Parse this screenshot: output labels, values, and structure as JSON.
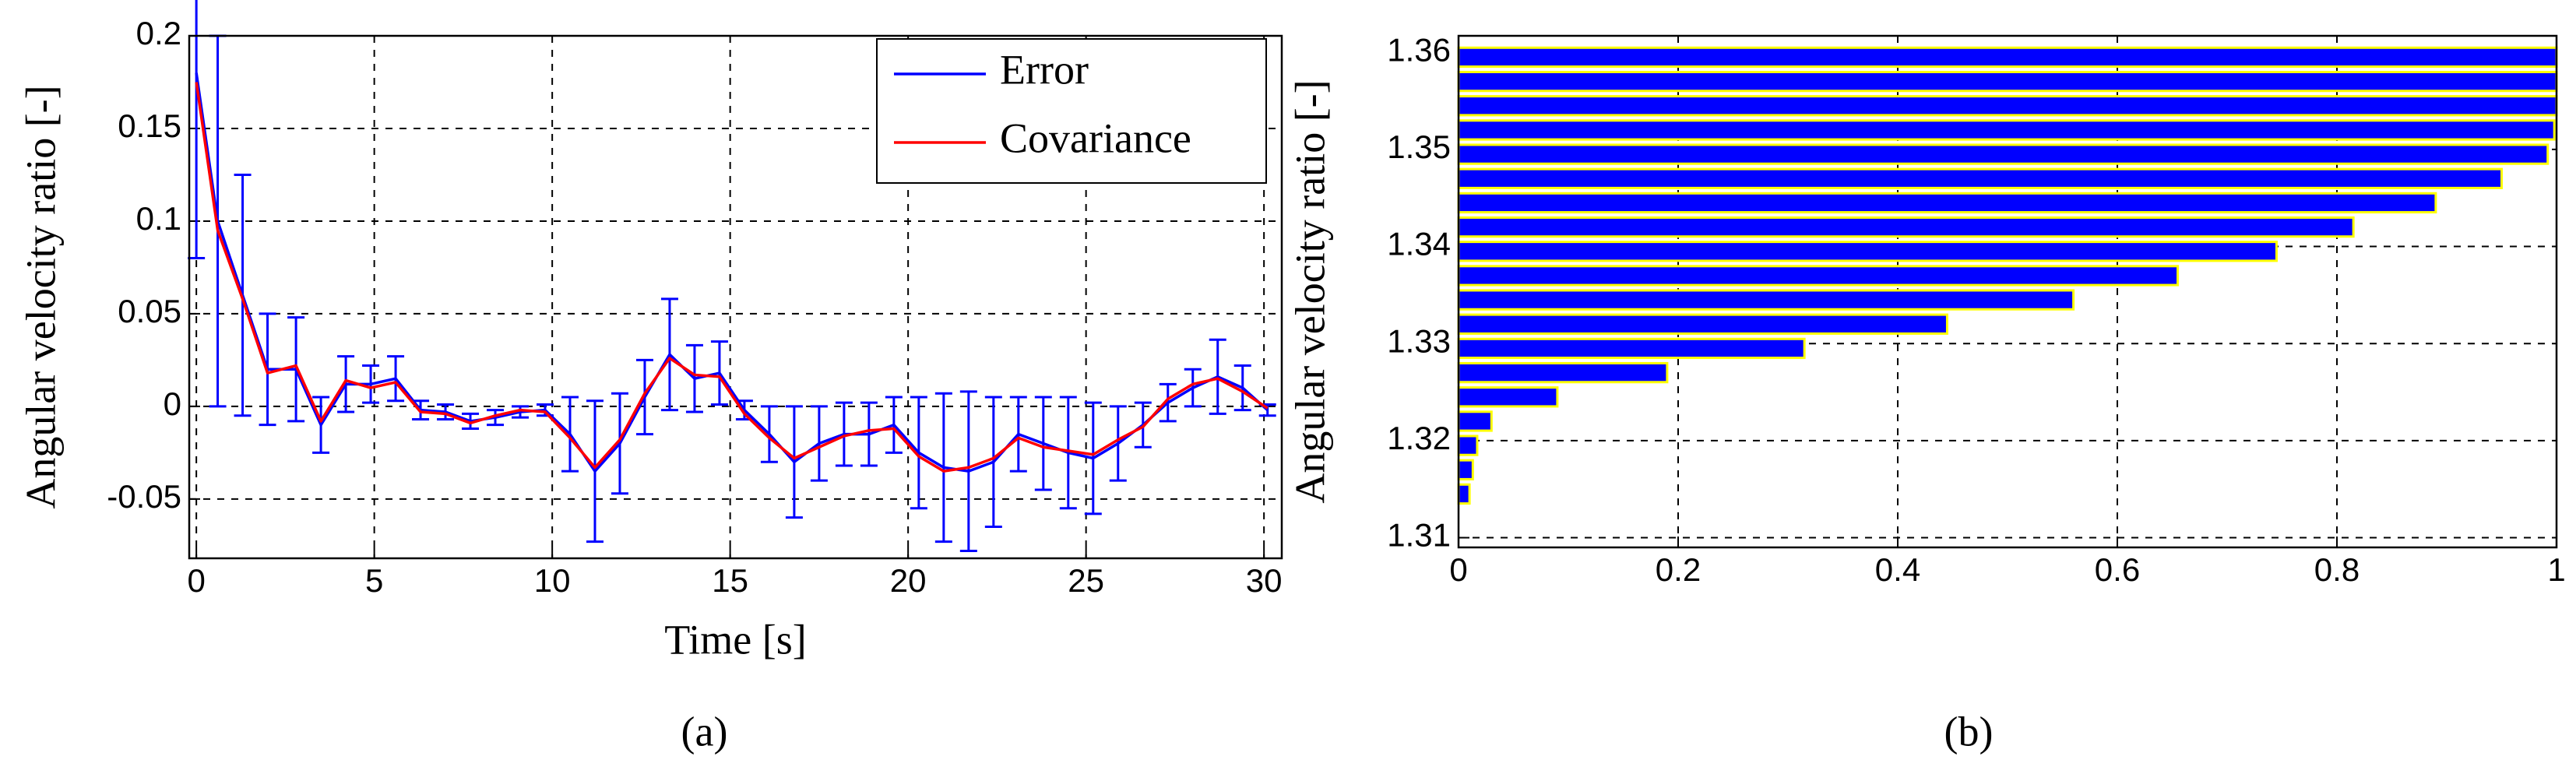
{
  "chart_data": [
    {
      "type": "line",
      "xlabel": "Time [s]",
      "ylabel": "Angular velocity ratio [-]",
      "panel_label": "(a)",
      "x": [
        0,
        0.6,
        1.3,
        2.0,
        2.8,
        3.5,
        4.2,
        4.9,
        5.6,
        6.3,
        7.0,
        7.7,
        8.4,
        9.1,
        9.8,
        10.5,
        11.2,
        11.9,
        12.6,
        13.3,
        14.0,
        14.7,
        15.4,
        16.1,
        16.8,
        17.5,
        18.2,
        18.9,
        19.6,
        20.3,
        21.0,
        21.7,
        22.4,
        23.1,
        23.8,
        24.5,
        25.2,
        25.9,
        26.6,
        27.3,
        28.0,
        28.7,
        29.4,
        30.1
      ],
      "series": [
        {
          "name": "Error",
          "color": "#0000ff",
          "values": [
            0.18,
            0.1,
            0.06,
            0.02,
            0.02,
            -0.01,
            0.012,
            0.012,
            0.015,
            -0.002,
            -0.003,
            -0.008,
            -0.006,
            -0.003,
            -0.002,
            -0.015,
            -0.035,
            -0.02,
            0.005,
            0.028,
            0.015,
            0.018,
            -0.002,
            -0.015,
            -0.03,
            -0.02,
            -0.015,
            -0.015,
            -0.01,
            -0.025,
            -0.033,
            -0.035,
            -0.03,
            -0.015,
            -0.02,
            -0.025,
            -0.028,
            -0.02,
            -0.01,
            0.002,
            0.01,
            0.016,
            0.01,
            -0.002
          ],
          "errors": [
            0.1,
            0.1,
            0.065,
            0.03,
            0.028,
            0.015,
            0.015,
            0.01,
            0.012,
            0.005,
            0.004,
            0.004,
            0.004,
            0.003,
            0.003,
            0.02,
            0.038,
            0.027,
            0.02,
            0.03,
            0.018,
            0.017,
            0.005,
            0.015,
            0.03,
            0.02,
            0.017,
            0.017,
            0.015,
            0.03,
            0.04,
            0.043,
            0.035,
            0.02,
            0.025,
            0.03,
            0.03,
            0.02,
            0.012,
            0.01,
            0.01,
            0.02,
            0.012,
            0.003
          ]
        },
        {
          "name": "Covariance",
          "color": "#ff0000",
          "values": [
            0.175,
            0.095,
            0.058,
            0.018,
            0.022,
            -0.008,
            0.014,
            0.01,
            0.013,
            -0.003,
            -0.004,
            -0.009,
            -0.005,
            -0.002,
            -0.003,
            -0.017,
            -0.033,
            -0.018,
            0.007,
            0.026,
            0.017,
            0.016,
            -0.004,
            -0.017,
            -0.028,
            -0.022,
            -0.016,
            -0.013,
            -0.012,
            -0.027,
            -0.035,
            -0.033,
            -0.028,
            -0.017,
            -0.022,
            -0.024,
            -0.026,
            -0.018,
            -0.011,
            0.004,
            0.012,
            0.015,
            0.008,
            -0.001
          ]
        }
      ],
      "xlim": [
        -0.2,
        30.5
      ],
      "ylim": [
        -0.082,
        0.2
      ],
      "xticks": [
        0,
        5,
        10,
        15,
        20,
        25,
        30
      ],
      "yticks": [
        -0.05,
        0,
        0.05,
        0.1,
        0.15,
        0.2
      ],
      "grid": true,
      "legend": "upper right"
    },
    {
      "type": "barh",
      "ylabel": "Angular velocity ratio [-]",
      "panel_label": "(b)",
      "y": [
        1.3595,
        1.357,
        1.3545,
        1.352,
        1.3495,
        1.347,
        1.3445,
        1.342,
        1.3395,
        1.337,
        1.3345,
        1.332,
        1.3295,
        1.327,
        1.3245,
        1.322,
        1.3195,
        1.317,
        1.3145
      ],
      "values": [
        1,
        1,
        1,
        0.998,
        0.992,
        0.95,
        0.89,
        0.815,
        0.745,
        0.655,
        0.56,
        0.445,
        0.315,
        0.19,
        0.09,
        0.03,
        0.017,
        0.013,
        0.01
      ],
      "color": "#0000ff",
      "edgecolor": "#ffff00",
      "xlim": [
        0,
        1
      ],
      "ylim": [
        1.309,
        1.3617
      ],
      "xticks": [
        0,
        0.2,
        0.4,
        0.6,
        0.8,
        1
      ],
      "yticks": [
        1.31,
        1.32,
        1.33,
        1.34,
        1.35,
        1.36
      ],
      "grid": true
    }
  ]
}
